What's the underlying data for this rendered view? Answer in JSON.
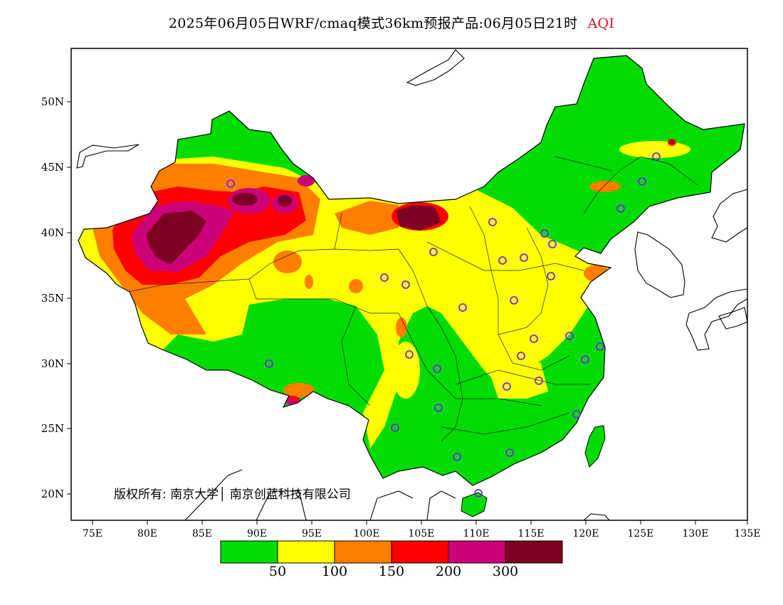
{
  "title": {
    "text": "2025年06月05日WRF/cmaq模式36km预报产品:06月05日21时",
    "variable": "AQI"
  },
  "axes": {
    "lat_labels": [
      "50N",
      "45N",
      "40N",
      "35N",
      "30N",
      "25N",
      "20N"
    ],
    "lon_labels": [
      "75E",
      "80E",
      "85E",
      "90E",
      "95E",
      "100E",
      "105E",
      "110E",
      "115E",
      "120E",
      "125E",
      "130E",
      "135E"
    ]
  },
  "copyright": "版权所有: 南京大学│ 南京创蓝科技有限公司",
  "legend": {
    "colors": [
      "#00dc00",
      "#ffff00",
      "#ff7e00",
      "#ff0000",
      "#cc0077",
      "#7e0023"
    ],
    "breaks": [
      "50",
      "100",
      "150",
      "200",
      "300"
    ]
  },
  "colors": {
    "good": "#00dc00",
    "moderate": "#ffff00",
    "usg": "#ff7e00",
    "unhealthy": "#ff0000",
    "very_unhealthy": "#cc0077",
    "hazardous": "#7e0023",
    "station_ring": "#7a2be2"
  }
}
